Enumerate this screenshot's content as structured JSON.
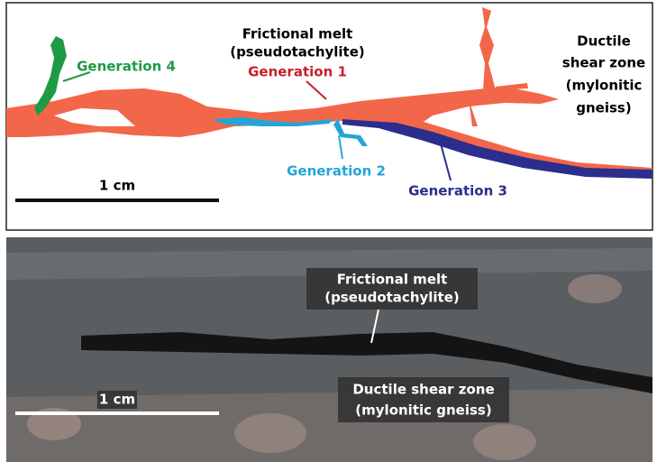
{
  "top_panel": {
    "melt_label": [
      "Frictional melt",
      "(pseudotachylite)"
    ],
    "generations": [
      "Generation 1",
      "Generation 2",
      "Generation 3",
      "Generation 4"
    ],
    "shear_zone_label": [
      "Ductile",
      "shear zone",
      "(mylonitic",
      "gneiss)"
    ],
    "scale_bar": "1 cm"
  },
  "bottom_panel": {
    "melt_label": [
      "Frictional melt",
      "(pseudotachylite)"
    ],
    "shear_zone_label": [
      "Ductile shear zone",
      "(mylonitic gneiss)"
    ],
    "scale_bar": "1 cm"
  }
}
